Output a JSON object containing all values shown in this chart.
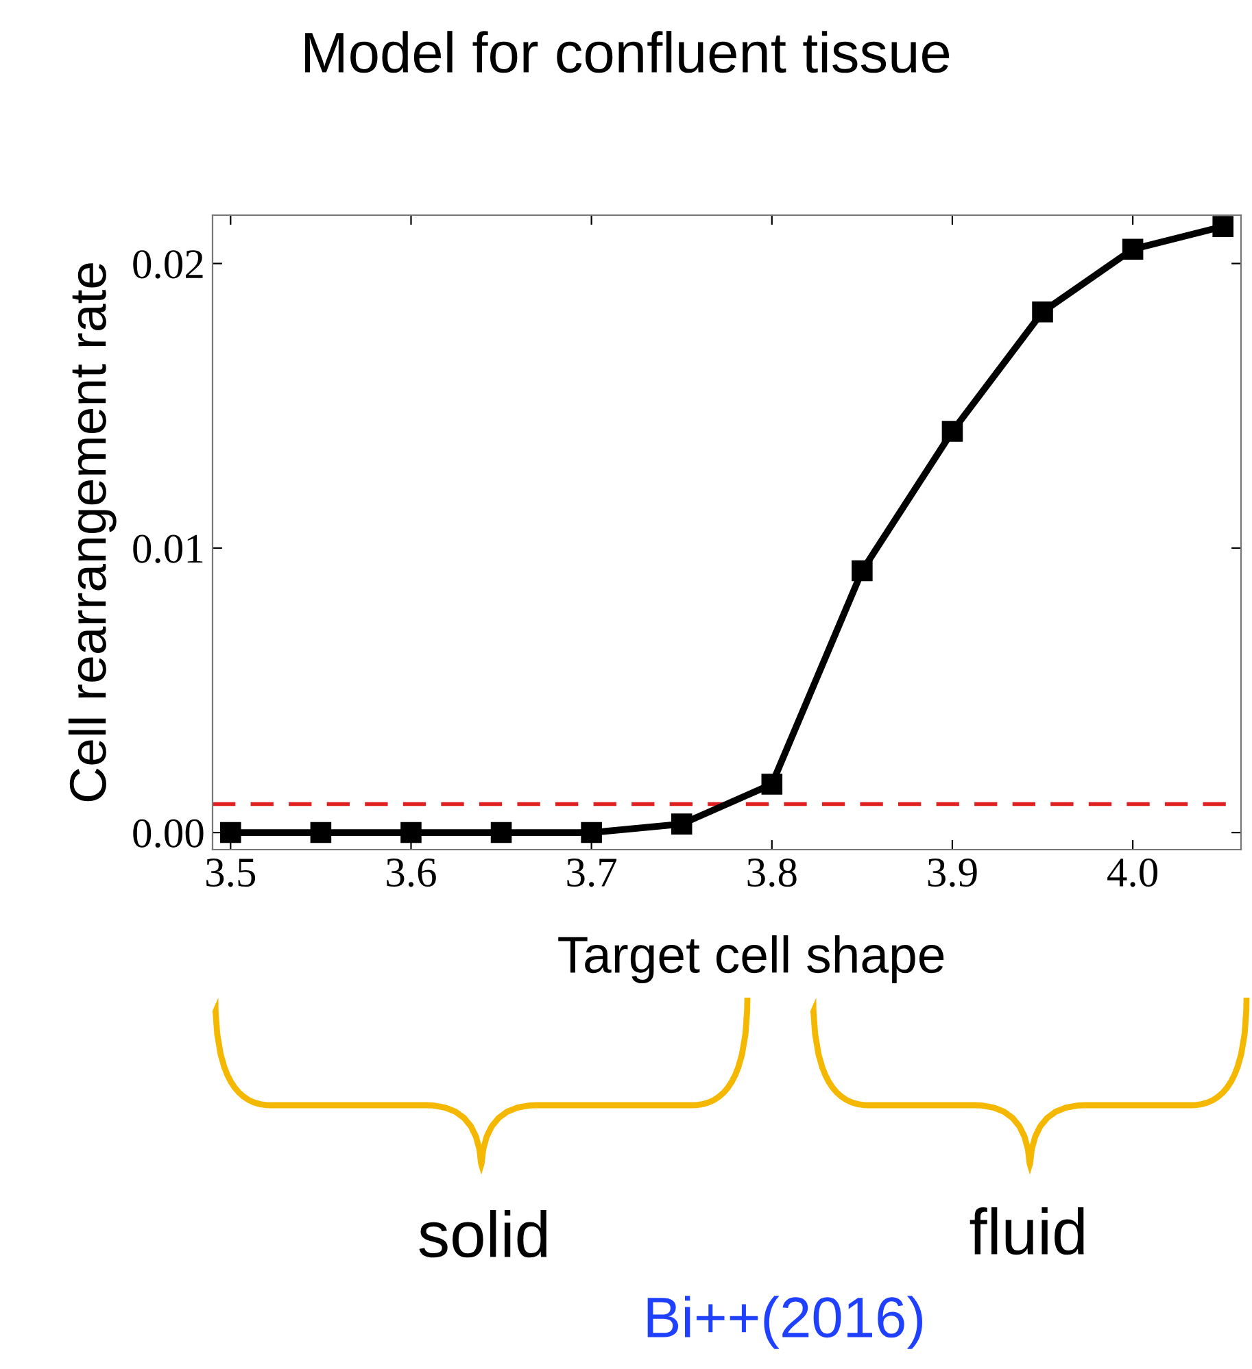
{
  "chart_data": {
    "type": "line",
    "title": "Model for confluent tissue",
    "xlabel": "Target cell shape",
    "ylabel": "Cell rearrangement rate",
    "x": [
      3.5,
      3.55,
      3.6,
      3.65,
      3.7,
      3.75,
      3.8,
      3.85,
      3.9,
      3.95,
      4.0,
      4.05
    ],
    "series": [
      {
        "color": "#000000",
        "values": [
          0,
          0,
          0,
          0,
          0,
          0.0003,
          0.0017,
          0.0092,
          0.0141,
          0.0183,
          0.0205,
          0.0213
        ]
      }
    ],
    "marker": "square",
    "line_style": "solid",
    "xlim": [
      3.49,
      4.06
    ],
    "ylim": [
      -0.0006,
      0.0217
    ],
    "xticks": [
      3.5,
      3.6,
      3.7,
      3.8,
      3.9,
      {
        "value": 4.0,
        "label": "4.0"
      }
    ],
    "yticks": [
      {
        "value": 0,
        "label": "0.00"
      },
      {
        "value": 0.01,
        "label": "0.01"
      },
      {
        "value": 0.02,
        "label": "0.02"
      }
    ],
    "ref_lines": [
      {
        "axis": "y",
        "value": 0.001,
        "color": "#e02020",
        "line_style": "dashed"
      }
    ],
    "grid": false,
    "legend": false,
    "annotations": [
      "solid",
      "fluid",
      "Bi++(2016)"
    ]
  }
}
